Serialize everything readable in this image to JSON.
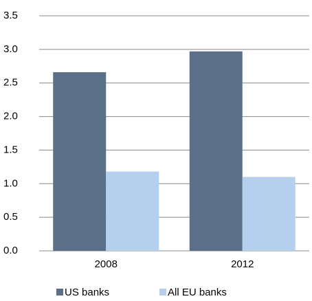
{
  "chart_data": {
    "type": "bar",
    "categories": [
      "2008",
      "2012"
    ],
    "series": [
      {
        "name": "US banks",
        "color": "#5b7088",
        "values": [
          2.66,
          2.97
        ]
      },
      {
        "name": "All EU banks",
        "color": "#b5d0ee",
        "values": [
          1.18,
          1.1
        ]
      }
    ],
    "ylim": [
      0,
      3.5
    ],
    "yticks": [
      {
        "value": 0,
        "label": "0.0"
      },
      0.5,
      {
        "value": 1,
        "label": "1.0"
      },
      1.5,
      {
        "value": 2,
        "label": "2.0"
      },
      2.5,
      {
        "value": 3,
        "label": "3.0"
      },
      3.5
    ],
    "grid": true,
    "legend": "bottom"
  }
}
